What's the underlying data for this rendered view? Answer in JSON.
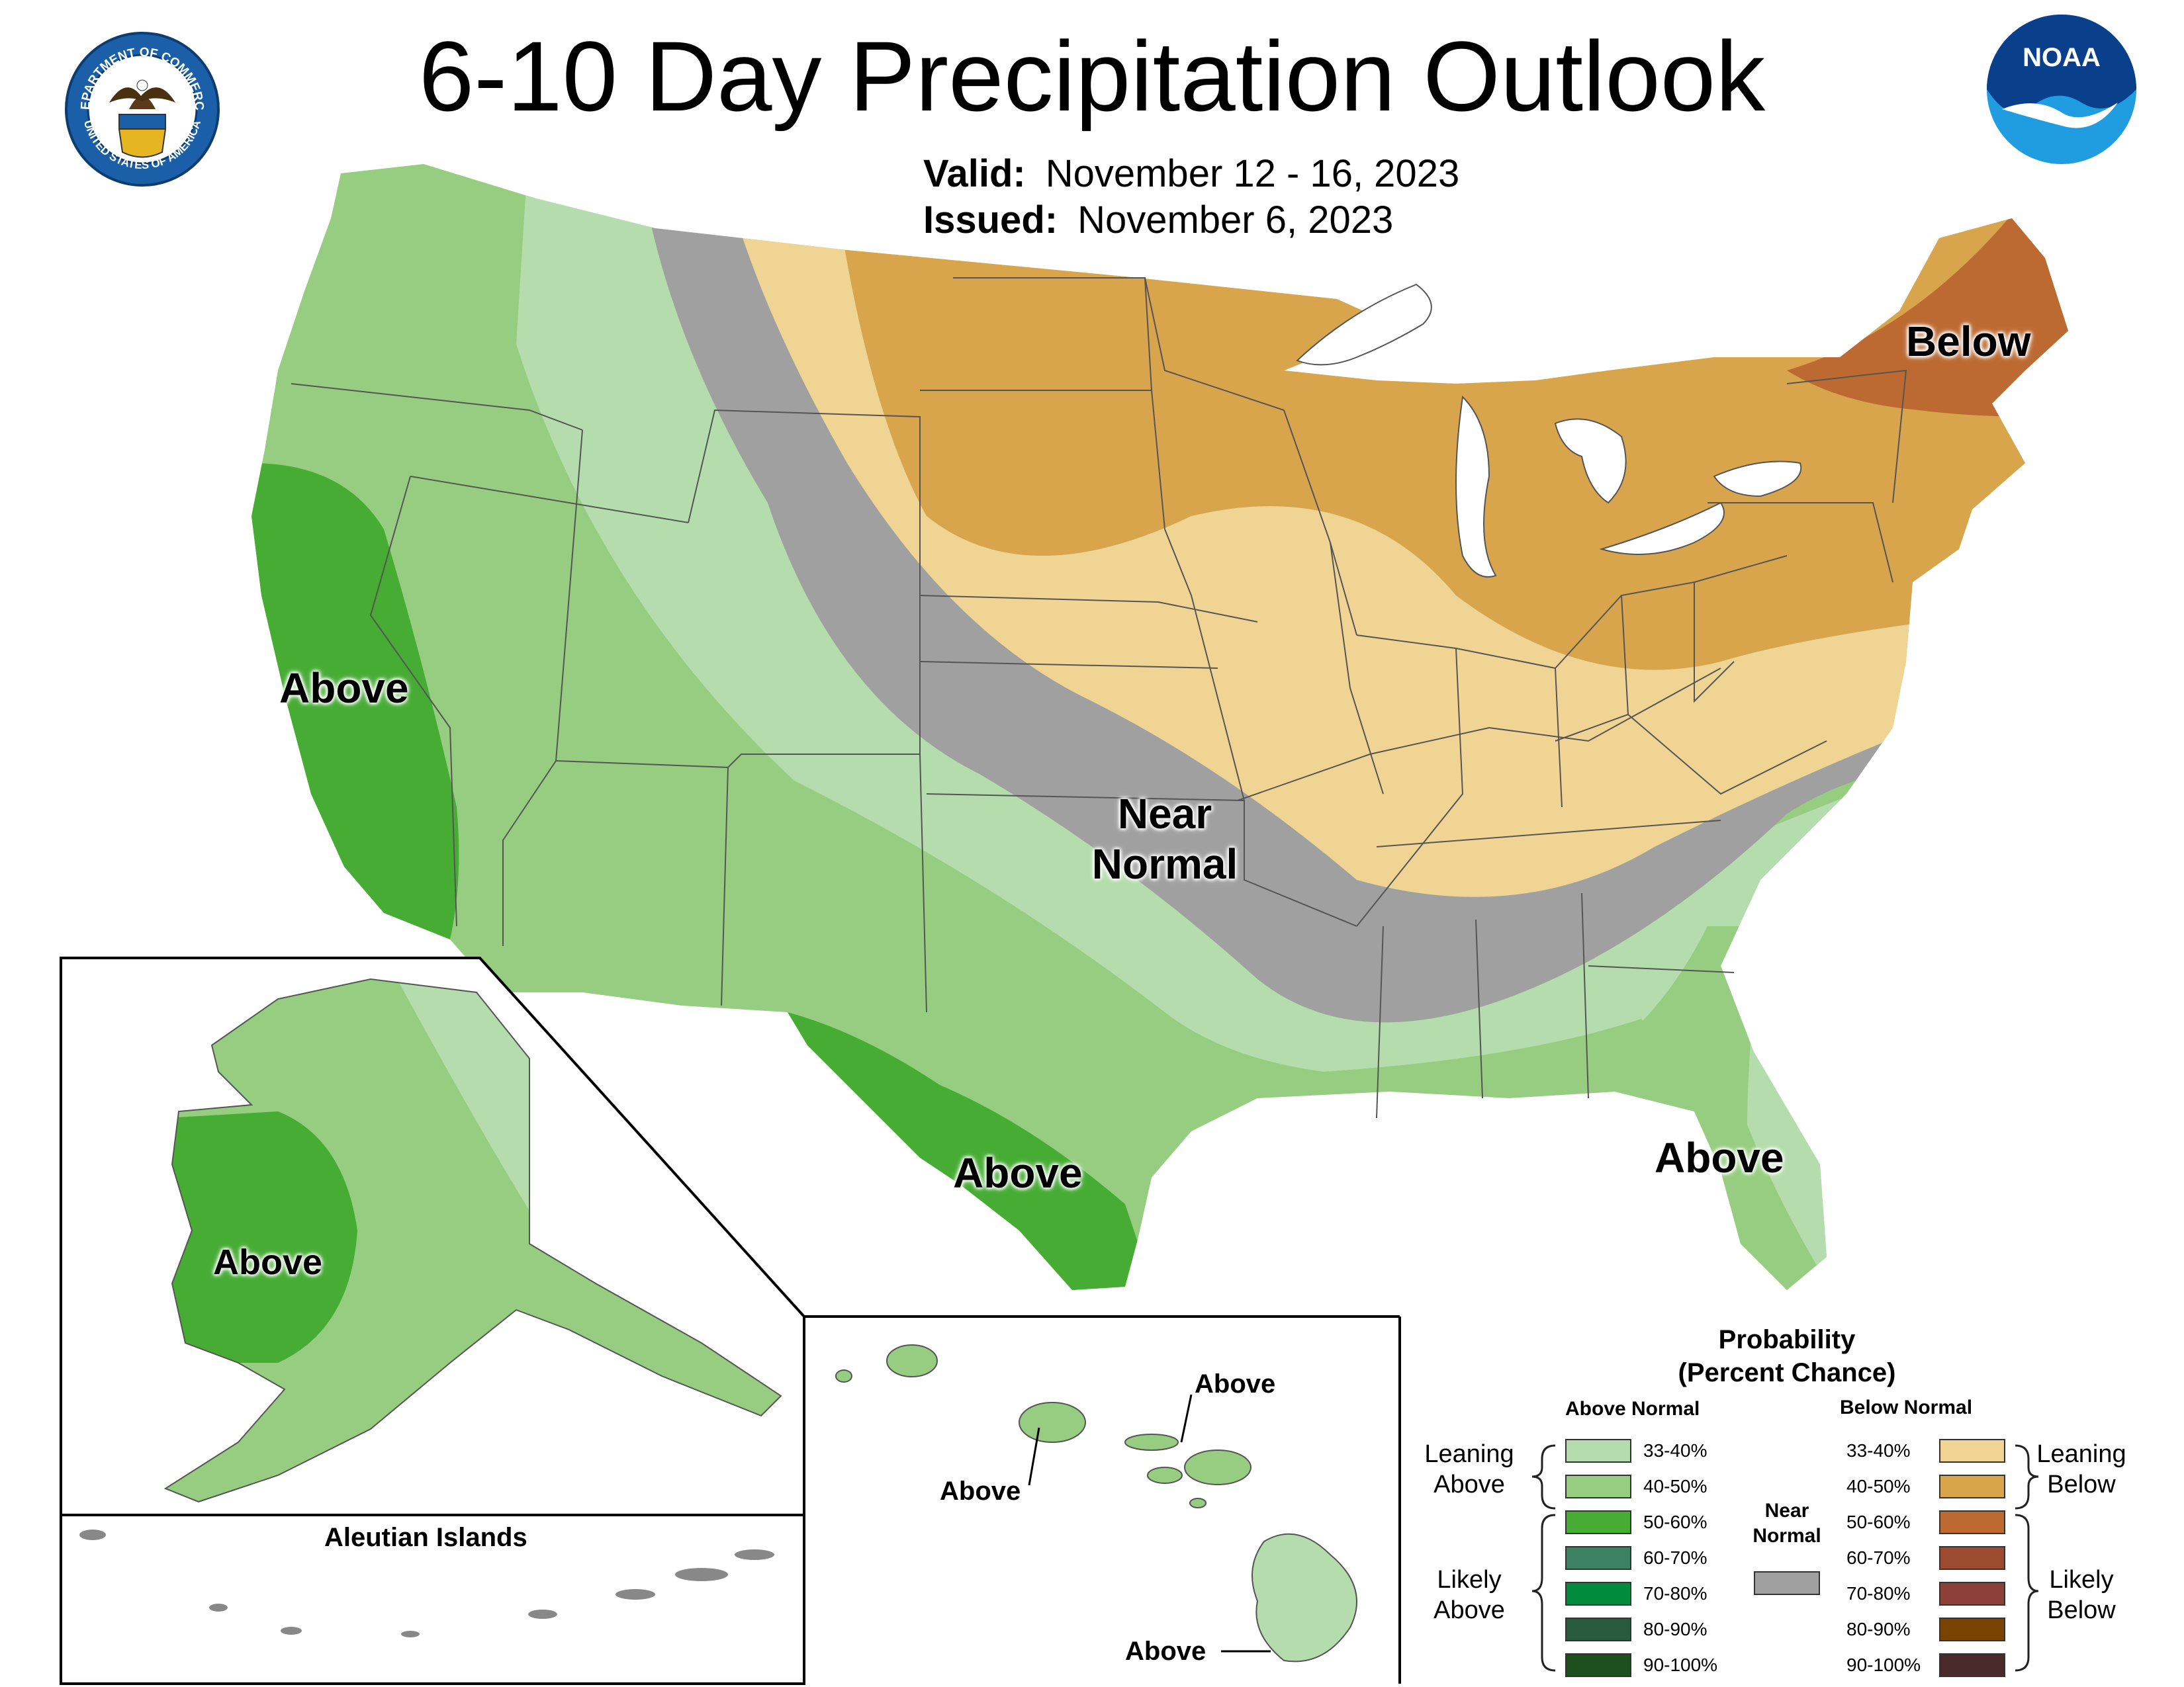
{
  "title": "6-10 Day Precipitation Outlook",
  "valid": {
    "label": "Valid:",
    "value": "November 12 - 16, 2023"
  },
  "issued": {
    "label": "Issued:",
    "value": "November 6, 2023"
  },
  "logos": {
    "doc": {
      "name": "department-of-commerce-seal",
      "top_text": "DEPARTMENT OF COMMERCE",
      "bottom_text": "UNITED STATES OF AMERICA"
    },
    "noaa": {
      "name": "noaa-logo",
      "text": "NOAA"
    }
  },
  "map_labels": {
    "below_northeast": "Below",
    "above_california": "Above",
    "near_normal": "Near Normal",
    "above_texas": "Above",
    "above_florida": "Above",
    "above_alaska": "Above",
    "aleutian_title": "Aleutian Islands",
    "hawaii_above_1": "Above",
    "hawaii_above_2": "Above",
    "hawaii_above_3": "Above"
  },
  "legend": {
    "title_line1": "Probability",
    "title_line2": "(Percent Chance)",
    "above_header": "Above Normal",
    "below_header": "Below Normal",
    "near_header_1": "Near",
    "near_header_2": "Normal",
    "leaning_above_1": "Leaning",
    "leaning_above_2": "Above",
    "likely_above_1": "Likely",
    "likely_above_2": "Above",
    "leaning_below_1": "Leaning",
    "leaning_below_2": "Below",
    "likely_below_1": "Likely",
    "likely_below_2": "Below",
    "above": [
      {
        "label": "33-40%",
        "color": "#b4dcac"
      },
      {
        "label": "40-50%",
        "color": "#96cd80"
      },
      {
        "label": "50-60%",
        "color": "#46ac34"
      },
      {
        "label": "60-70%",
        "color": "#3c8262"
      },
      {
        "label": "70-80%",
        "color": "#008c3c"
      },
      {
        "label": "80-90%",
        "color": "#285a3c"
      },
      {
        "label": "90-100%",
        "color": "#1e501e"
      }
    ],
    "below": [
      {
        "label": "33-40%",
        "color": "#f0d494"
      },
      {
        "label": "40-50%",
        "color": "#d8a44c"
      },
      {
        "label": "50-60%",
        "color": "#bc6a32"
      },
      {
        "label": "60-70%",
        "color": "#9c4a30"
      },
      {
        "label": "70-80%",
        "color": "#8c4038"
      },
      {
        "label": "80-90%",
        "color": "#7a4200"
      },
      {
        "label": "90-100%",
        "color": "#4a2a2a"
      }
    ],
    "near_color": "#a0a0a0"
  }
}
